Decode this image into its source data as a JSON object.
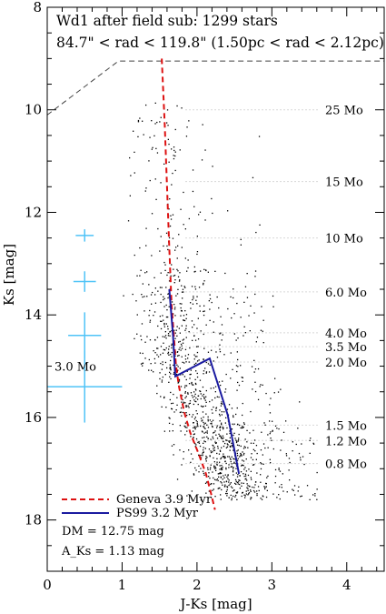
{
  "chart_data": {
    "type": "scatter",
    "title": "Wd1 after field sub: 1299 stars",
    "subtitle": "84.7\" < rad < 119.8\" (1.50pc < rad < 2.12pc)",
    "xlabel": "J-Ks [mag]",
    "ylabel": "Ks [mag]",
    "xlim": [
      0,
      4.5
    ],
    "ylim": [
      19,
      8
    ],
    "y_inverted": true,
    "x_ticks": [
      "0",
      "1",
      "2",
      "3",
      "4"
    ],
    "x_tick_values": [
      0,
      1,
      2,
      3,
      4
    ],
    "y_ticks": [
      "8",
      "10",
      "12",
      "14",
      "16",
      "18"
    ],
    "y_tick_values": [
      8,
      10,
      12,
      14,
      16,
      18
    ],
    "grid": false,
    "legend_position": "bottom-left",
    "series": [
      {
        "name": "Geneva 3.9 Myr",
        "style": "dashed",
        "color": "#dd1111",
        "points": [
          [
            1.53,
            9.0
          ],
          [
            1.57,
            10.3
          ],
          [
            1.6,
            11.5
          ],
          [
            1.63,
            12.7
          ],
          [
            1.66,
            13.8
          ],
          [
            1.7,
            14.6
          ],
          [
            1.72,
            15.0
          ],
          [
            1.76,
            15.4
          ],
          [
            1.83,
            15.9
          ],
          [
            1.91,
            16.3
          ],
          [
            2.02,
            16.7
          ],
          [
            2.12,
            17.1
          ],
          [
            2.19,
            17.5
          ],
          [
            2.24,
            17.8
          ]
        ]
      },
      {
        "name": "PS99 3.2 Myr",
        "style": "solid",
        "color": "#1a1aa0",
        "points": [
          [
            1.63,
            13.5
          ],
          [
            1.68,
            14.4
          ],
          [
            1.71,
            15.2
          ],
          [
            2.17,
            14.85
          ],
          [
            2.41,
            15.95
          ],
          [
            2.56,
            17.1
          ]
        ]
      }
    ],
    "mass_labels": [
      {
        "label": "25 Mo",
        "y": 10.0
      },
      {
        "label": "15 Mo",
        "y": 11.4
      },
      {
        "label": "10 Mo",
        "y": 12.5
      },
      {
        "label": "6.0 Mo",
        "y": 13.55
      },
      {
        "label": "4.0 Mo",
        "y": 14.35
      },
      {
        "label": "3.5 Mo",
        "y": 14.62
      },
      {
        "label": "2.0 Mo",
        "y": 14.92
      },
      {
        "label": "1.5 Mo",
        "y": 16.15
      },
      {
        "label": "1.2 Mo",
        "y": 16.45
      },
      {
        "label": "0.8 Mo",
        "y": 16.9
      }
    ],
    "side_label": {
      "label": "3.0 Mo",
      "y": 15.0
    },
    "error_bars": [
      {
        "x": 0.5,
        "y": 12.45,
        "xerr": 0.12,
        "yerr": 0.12
      },
      {
        "x": 0.5,
        "y": 13.35,
        "xerr": 0.15,
        "yerr": 0.2
      },
      {
        "x": 0.5,
        "y": 14.4,
        "xerr": 0.22,
        "yerr": 0.45
      },
      {
        "x": 0.5,
        "y": 15.4,
        "xerr": 0.5,
        "yerr": 0.7
      }
    ],
    "completeness_limit": [
      [
        0,
        10.1
      ],
      [
        0.95,
        9.05
      ],
      [
        4.5,
        9.05
      ]
    ],
    "scatter_points": 1299,
    "annotations": [
      "DM = 12.75 mag",
      "A_Ks = 1.13 mag"
    ]
  },
  "colors": {
    "geneva": "#dd1111",
    "ps99": "#1a1aa0",
    "error_bars": "#4fc3f7",
    "guides": "#b0b0b0"
  }
}
